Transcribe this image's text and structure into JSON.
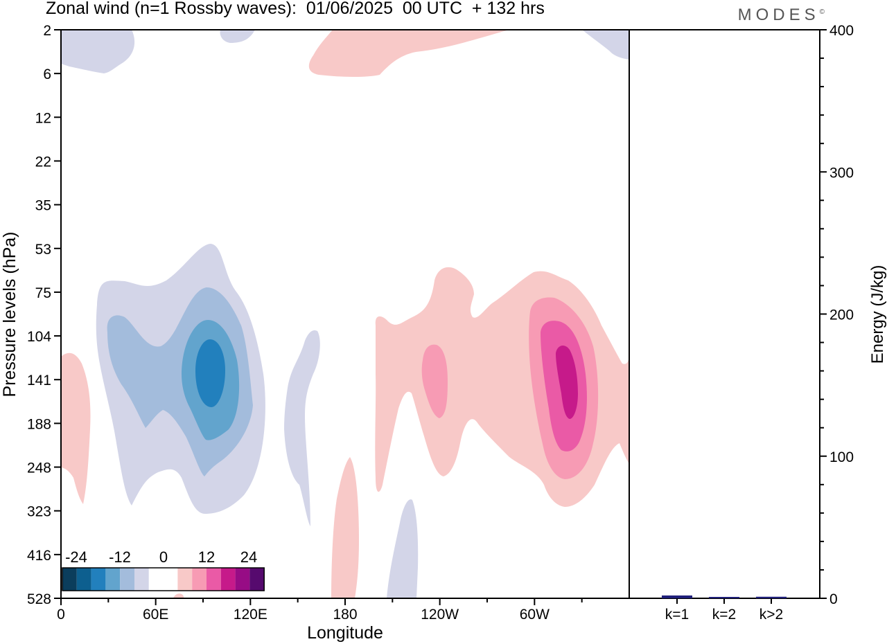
{
  "chart_title": "Zonal wind (n=1 Rossby waves):  01/06/2025  00 UTC  + 132 hrs",
  "brand": "MODES",
  "brand_mark": "©",
  "chart_data": [
    {
      "type": "heatmap",
      "name": "zonal-wind-contour",
      "xlabel": "Longitude",
      "ylabel": "Pressure levels (hPa)",
      "x_ticks": [
        "0",
        "60E",
        "120E",
        "180",
        "120W",
        "60W"
      ],
      "x_tick_values": [
        0,
        60,
        120,
        180,
        240,
        300
      ],
      "xlim": [
        0,
        360
      ],
      "y_ticks": [
        "2",
        "6",
        "12",
        "22",
        "35",
        "53",
        "75",
        "104",
        "141",
        "188",
        "248",
        "323",
        "416",
        "528"
      ],
      "y_scale": "categorical-pressure-levels",
      "contour_levels": [
        -30,
        -24,
        -18,
        -12,
        -6,
        -3,
        3,
        6,
        12,
        18,
        24,
        30
      ],
      "colorbar": {
        "labels": [
          "-24",
          "-12",
          "0",
          "12",
          "24"
        ],
        "colors": [
          "#0b3d5c",
          "#0d5f8f",
          "#2280bd",
          "#62a4cd",
          "#a3bcdc",
          "#d3d5e8",
          "#ffffff",
          "#ffffff",
          "#f8c9c8",
          "#f79bb4",
          "#ea5aa6",
          "#c61a8a",
          "#970c85",
          "#560a6e"
        ]
      },
      "features": [
        {
          "sign": "negative",
          "center_lon": 52,
          "center_level": "141",
          "peak": -18,
          "extent_levels": [
            "53",
            "323"
          ]
        },
        {
          "sign": "positive",
          "center_lon": 286,
          "center_level": "141",
          "peak": 18,
          "extent_levels": [
            "75",
            "323"
          ]
        },
        {
          "sign": "positive",
          "center_lon": 238,
          "center_level": "141",
          "peak": 6,
          "extent_levels": [
            "104",
            "248"
          ]
        },
        {
          "sign": "negative",
          "center_lon": 162,
          "center_level": "188",
          "peak": -3,
          "extent_levels": [
            "104",
            "323"
          ]
        },
        {
          "sign": "positive",
          "center_lon": 7,
          "center_level": "188",
          "peak": 3,
          "extent_levels": [
            "141",
            "323"
          ]
        },
        {
          "sign": "positive",
          "center_lon": 185,
          "center_level": "416",
          "peak": 3,
          "extent_levels": [
            "248",
            "528"
          ]
        },
        {
          "sign": "negative",
          "center_lon": 216,
          "center_level": "416",
          "peak": -3,
          "extent_levels": [
            "323",
            "528"
          ]
        },
        {
          "sign": "positive",
          "center_lon": 200,
          "center_level": "6",
          "peak": 3,
          "extent_levels": [
            "2",
            "6"
          ]
        },
        {
          "sign": "negative",
          "center_lon": 20,
          "center_level": "2",
          "peak": -3,
          "extent_levels": [
            "2",
            "6"
          ]
        },
        {
          "sign": "negative",
          "center_lon": 350,
          "center_level": "2",
          "peak": -3,
          "extent_levels": [
            "2",
            "6"
          ]
        }
      ],
      "colors": {
        "negative": [
          "#d3d5e8",
          "#a3bcdc",
          "#62a4cd",
          "#2280bd"
        ],
        "positive": [
          "#f8c9c8",
          "#f79bb4",
          "#ea5aa6",
          "#c61a8a"
        ]
      }
    },
    {
      "type": "bar",
      "name": "energy-spectrum",
      "categories": [
        "k=1",
        "k=2",
        "k>2"
      ],
      "values": [
        1.5,
        0.2,
        0.6
      ],
      "ylabel": "Energy (J/kg)",
      "ylim": [
        0,
        400
      ],
      "y_ticks": [
        "0",
        "100",
        "200",
        "300",
        "400"
      ],
      "y_tick_values": [
        0,
        100,
        200,
        300,
        400
      ],
      "bar_color": "#1f1f7a"
    }
  ]
}
